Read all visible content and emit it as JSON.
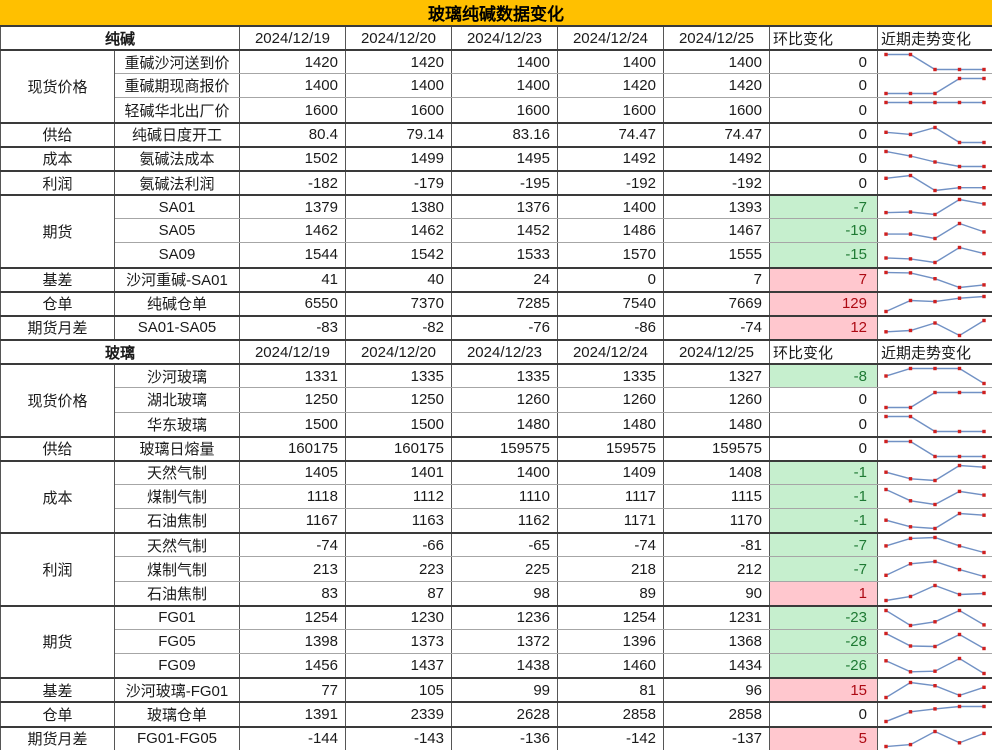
{
  "title": "玻璃纯碱数据变化",
  "headers": {
    "change": "环比变化",
    "trend": "近期走势变化"
  },
  "colors": {
    "title_bg": "#FFC000",
    "negative_bg": "#C6EFCE",
    "negative_text": "#1F7A34",
    "positive_bg": "#FFC7CE",
    "positive_text": "#AD0A14",
    "sparkline_line": "#7191C4",
    "sparkline_marker": "#CF2020"
  },
  "sections": [
    {
      "name": "纯碱",
      "dates": [
        "2024/12/19",
        "2024/12/20",
        "2024/12/23",
        "2024/12/24",
        "2024/12/25"
      ],
      "groups": [
        {
          "category": "现货价格",
          "rows": [
            {
              "item": "重碱沙河送到价",
              "values": [
                1420,
                1420,
                1400,
                1400,
                1400
              ],
              "change": 0
            },
            {
              "item": "重碱期现商报价",
              "values": [
                1400,
                1400,
                1400,
                1420,
                1420
              ],
              "change": 0
            },
            {
              "item": "轻碱华北出厂价",
              "values": [
                1600,
                1600,
                1600,
                1600,
                1600
              ],
              "change": 0
            }
          ]
        },
        {
          "category": "供给",
          "rows": [
            {
              "item": "纯碱日度开工",
              "values": [
                80.4,
                79.14,
                83.16,
                74.47,
                74.47
              ],
              "change": 0
            }
          ]
        },
        {
          "category": "成本",
          "rows": [
            {
              "item": "氨碱法成本",
              "values": [
                1502,
                1499,
                1495,
                1492,
                1492
              ],
              "change": 0
            }
          ]
        },
        {
          "category": "利润",
          "rows": [
            {
              "item": "氨碱法利润",
              "values": [
                -182,
                -179,
                -195,
                -192,
                -192
              ],
              "change": 0
            }
          ]
        },
        {
          "category": "期货",
          "rows": [
            {
              "item": "SA01",
              "values": [
                1379,
                1380,
                1376,
                1400,
                1393
              ],
              "change": -7
            },
            {
              "item": "SA05",
              "values": [
                1462,
                1462,
                1452,
                1486,
                1467
              ],
              "change": -19
            },
            {
              "item": "SA09",
              "values": [
                1544,
                1542,
                1533,
                1570,
                1555
              ],
              "change": -15
            }
          ]
        },
        {
          "category": "基差",
          "rows": [
            {
              "item": "沙河重碱-SA01",
              "values": [
                41,
                40,
                24,
                0,
                7
              ],
              "change": 7
            }
          ]
        },
        {
          "category": "仓单",
          "rows": [
            {
              "item": "纯碱仓单",
              "values": [
                6550,
                7370,
                7285,
                7540,
                7669
              ],
              "change": 129
            }
          ]
        },
        {
          "category": "期货月差",
          "rows": [
            {
              "item": "SA01-SA05",
              "values": [
                -83,
                -82,
                -76,
                -86,
                -74
              ],
              "change": 12
            }
          ]
        }
      ]
    },
    {
      "name": "玻璃",
      "dates": [
        "2024/12/19",
        "2024/12/20",
        "2024/12/23",
        "2024/12/24",
        "2024/12/25"
      ],
      "groups": [
        {
          "category": "现货价格",
          "rows": [
            {
              "item": "沙河玻璃",
              "values": [
                1331,
                1335,
                1335,
                1335,
                1327
              ],
              "change": -8
            },
            {
              "item": "湖北玻璃",
              "values": [
                1250,
                1250,
                1260,
                1260,
                1260
              ],
              "change": 0
            },
            {
              "item": "华东玻璃",
              "values": [
                1500,
                1500,
                1480,
                1480,
                1480
              ],
              "change": 0
            }
          ]
        },
        {
          "category": "供给",
          "rows": [
            {
              "item": "玻璃日熔量",
              "values": [
                160175,
                160175,
                159575,
                159575,
                159575
              ],
              "change": 0
            }
          ]
        },
        {
          "category": "成本",
          "rows": [
            {
              "item": "天然气制",
              "values": [
                1405,
                1401,
                1400,
                1409,
                1408
              ],
              "change": -1
            },
            {
              "item": "煤制气制",
              "values": [
                1118,
                1112,
                1110,
                1117,
                1115
              ],
              "change": -1
            },
            {
              "item": "石油焦制",
              "values": [
                1167,
                1163,
                1162,
                1171,
                1170
              ],
              "change": -1
            }
          ]
        },
        {
          "category": "利润",
          "rows": [
            {
              "item": "天然气制",
              "values": [
                -74,
                -66,
                -65,
                -74,
                -81
              ],
              "change": -7
            },
            {
              "item": "煤制气制",
              "values": [
                213,
                223,
                225,
                218,
                212
              ],
              "change": -7
            },
            {
              "item": "石油焦制",
              "values": [
                83,
                87,
                98,
                89,
                90
              ],
              "change": 1
            }
          ]
        },
        {
          "category": "期货",
          "rows": [
            {
              "item": "FG01",
              "values": [
                1254,
                1230,
                1236,
                1254,
                1231
              ],
              "change": -23
            },
            {
              "item": "FG05",
              "values": [
                1398,
                1373,
                1372,
                1396,
                1368
              ],
              "change": -28
            },
            {
              "item": "FG09",
              "values": [
                1456,
                1437,
                1438,
                1460,
                1434
              ],
              "change": -26
            }
          ]
        },
        {
          "category": "基差",
          "rows": [
            {
              "item": "沙河玻璃-FG01",
              "values": [
                77,
                105,
                99,
                81,
                96
              ],
              "change": 15
            }
          ]
        },
        {
          "category": "仓单",
          "rows": [
            {
              "item": "玻璃仓单",
              "values": [
                1391,
                2339,
                2628,
                2858,
                2858
              ],
              "change": 0
            }
          ]
        },
        {
          "category": "期货月差",
          "rows": [
            {
              "item": "FG01-FG05",
              "values": [
                -144,
                -143,
                -136,
                -142,
                -137
              ],
              "change": 5
            }
          ]
        }
      ]
    }
  ]
}
